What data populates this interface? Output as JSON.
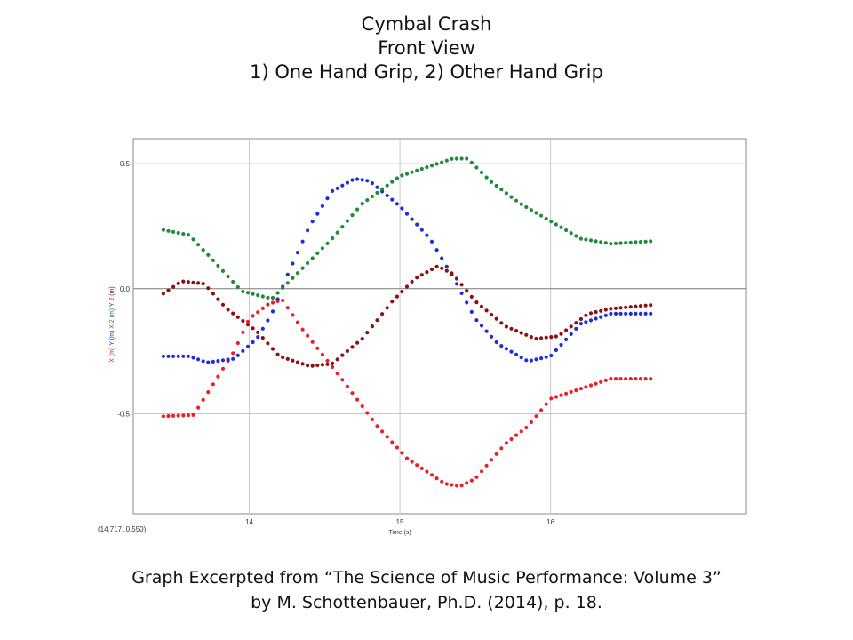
{
  "title_lines": [
    "Cymbal Crash",
    "Front View",
    "1) One Hand Grip, 2) Other Hand Grip"
  ],
  "caption_lines": [
    "Graph Excerpted from “The Science of Music Performance: Volume 3”",
    "by M. Schottenbauer, Ph.D. (2014), p. 18."
  ],
  "chart_data": {
    "type": "scatter",
    "title": "",
    "xlabel": "Time (s)",
    "ylabel_parts": [
      {
        "text": "X (m)",
        "color": "#e8202a"
      },
      {
        "text": "Y (m)",
        "color": "#1f2fd6"
      },
      {
        "text": "X 2 (m)",
        "color": "#1f8a3a"
      },
      {
        "text": "Y 2 (m)",
        "color": "#8b1010"
      }
    ],
    "xlim": [
      13.23,
      17.3
    ],
    "ylim": [
      -0.9,
      0.6
    ],
    "x_ticks": [
      {
        "value": 14,
        "label": "14"
      },
      {
        "value": 15,
        "label": "15"
      },
      {
        "value": 16,
        "label": "16"
      }
    ],
    "y_ticks": [
      {
        "value": 0.5,
        "label": "0.5"
      },
      {
        "value": 0.0,
        "label": "0.0"
      },
      {
        "value": -0.5,
        "label": "-0.5"
      }
    ],
    "cursor_readout": "(14.717, 0.550)",
    "grid": true,
    "series": [
      {
        "name": "X (m)",
        "color": "#e8202a",
        "keypoints": [
          [
            13.43,
            -0.51
          ],
          [
            13.63,
            -0.505
          ],
          [
            13.9,
            -0.25
          ],
          [
            14.0,
            -0.12
          ],
          [
            14.13,
            -0.06
          ],
          [
            14.22,
            -0.045
          ],
          [
            14.35,
            -0.16
          ],
          [
            14.6,
            -0.35
          ],
          [
            14.85,
            -0.55
          ],
          [
            15.05,
            -0.68
          ],
          [
            15.2,
            -0.74
          ],
          [
            15.3,
            -0.78
          ],
          [
            15.4,
            -0.79
          ],
          [
            15.5,
            -0.76
          ],
          [
            15.7,
            -0.62
          ],
          [
            15.85,
            -0.55
          ],
          [
            16.0,
            -0.44
          ],
          [
            16.2,
            -0.4
          ],
          [
            16.4,
            -0.36
          ],
          [
            16.67,
            -0.36
          ]
        ]
      },
      {
        "name": "Y (m)",
        "color": "#1f2fd6",
        "keypoints": [
          [
            13.43,
            -0.27
          ],
          [
            13.6,
            -0.27
          ],
          [
            13.72,
            -0.295
          ],
          [
            13.9,
            -0.28
          ],
          [
            14.05,
            -0.2
          ],
          [
            14.15,
            -0.1
          ],
          [
            14.25,
            0.05
          ],
          [
            14.4,
            0.25
          ],
          [
            14.55,
            0.39
          ],
          [
            14.7,
            0.44
          ],
          [
            14.8,
            0.43
          ],
          [
            15.0,
            0.33
          ],
          [
            15.2,
            0.2
          ],
          [
            15.35,
            0.05
          ],
          [
            15.5,
            -0.12
          ],
          [
            15.65,
            -0.22
          ],
          [
            15.85,
            -0.29
          ],
          [
            16.0,
            -0.27
          ],
          [
            16.2,
            -0.14
          ],
          [
            16.4,
            -0.1
          ],
          [
            16.67,
            -0.1
          ]
        ]
      },
      {
        "name": "X 2 (m)",
        "color": "#1f8a3a",
        "keypoints": [
          [
            13.43,
            0.235
          ],
          [
            13.6,
            0.215
          ],
          [
            13.75,
            0.12
          ],
          [
            13.95,
            -0.01
          ],
          [
            14.15,
            -0.04
          ],
          [
            14.35,
            0.08
          ],
          [
            14.55,
            0.2
          ],
          [
            14.75,
            0.34
          ],
          [
            15.0,
            0.45
          ],
          [
            15.2,
            0.49
          ],
          [
            15.35,
            0.52
          ],
          [
            15.45,
            0.52
          ],
          [
            15.6,
            0.43
          ],
          [
            15.8,
            0.34
          ],
          [
            16.0,
            0.27
          ],
          [
            16.2,
            0.2
          ],
          [
            16.4,
            0.18
          ],
          [
            16.67,
            0.19
          ]
        ]
      },
      {
        "name": "Y 2 (m)",
        "color": "#8b1010",
        "keypoints": [
          [
            13.43,
            -0.02
          ],
          [
            13.55,
            0.03
          ],
          [
            13.7,
            0.02
          ],
          [
            13.85,
            -0.08
          ],
          [
            14.05,
            -0.17
          ],
          [
            14.2,
            -0.27
          ],
          [
            14.4,
            -0.31
          ],
          [
            14.55,
            -0.3
          ],
          [
            14.75,
            -0.2
          ],
          [
            14.95,
            -0.05
          ],
          [
            15.1,
            0.04
          ],
          [
            15.25,
            0.09
          ],
          [
            15.35,
            0.06
          ],
          [
            15.5,
            -0.05
          ],
          [
            15.7,
            -0.15
          ],
          [
            15.9,
            -0.2
          ],
          [
            16.05,
            -0.19
          ],
          [
            16.25,
            -0.1
          ],
          [
            16.4,
            -0.08
          ],
          [
            16.67,
            -0.065
          ]
        ]
      }
    ]
  }
}
